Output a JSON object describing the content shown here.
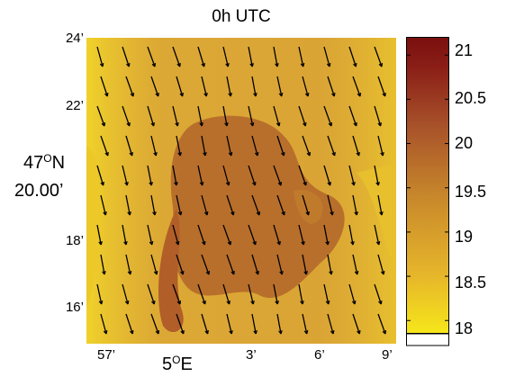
{
  "title": "0h UTC",
  "y_ticks": [
    "24’",
    "22’",
    "18’",
    "16’"
  ],
  "y_main_label": {
    "deg": "47",
    "sup": "O",
    "hemi": "N",
    "minutes": "20.00’"
  },
  "x_ticks": [
    "57’",
    "3’",
    "6’",
    "9’"
  ],
  "x_main_label": {
    "deg": "5",
    "sup": "O",
    "hemi": "E"
  },
  "colorbar": {
    "min": 17.85,
    "max": 21.2,
    "ticks": [
      "21",
      "20.5",
      "20",
      "19.5",
      "19",
      "18.5",
      "18"
    ],
    "colors": [
      "#f6e61a",
      "#e6b52b",
      "#c98a2b",
      "#a8522a",
      "#8a1e17",
      "#7a0f0e"
    ]
  },
  "map": {
    "background_color": "#d8a135",
    "arrow_color": "#000000",
    "arrow_direction": "south-southeast"
  }
}
